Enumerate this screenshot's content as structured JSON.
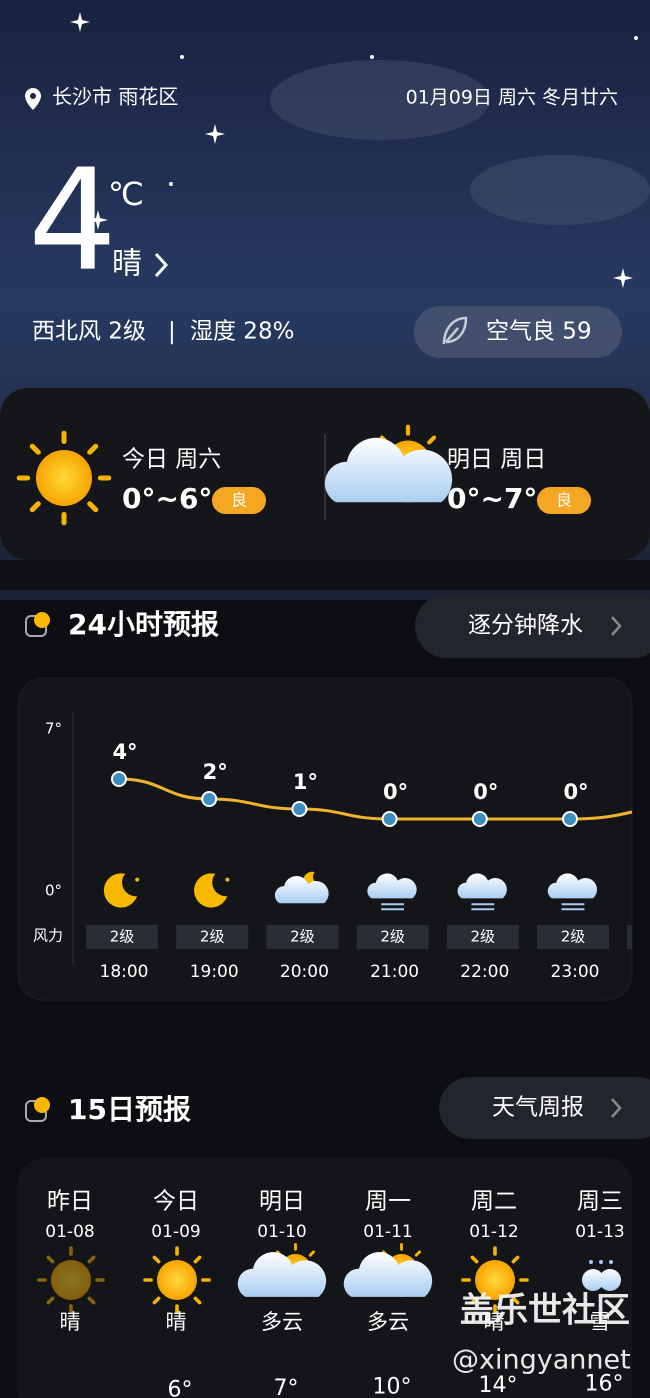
{
  "status": {
    "location": "长沙市 雨花区",
    "date": "01月09日 周六 冬月廿六"
  },
  "current": {
    "temp": "4",
    "unit": "℃",
    "condition": "晴",
    "wind": "西北风 2级",
    "separator": "|",
    "humidity": "湿度 28%",
    "air": "空气良 59"
  },
  "summary": [
    {
      "day": "今日 周六",
      "range": "0°~6°",
      "quality": "良",
      "icon": "sun"
    },
    {
      "day": "明日 周日",
      "range": "0°~7°",
      "quality": "良",
      "icon": "cloud-sun"
    }
  ],
  "hourly": {
    "title": "24小时预报",
    "button": "逐分钟降水",
    "axis_top": "7°",
    "axis_bottom": "0°",
    "wind_label": "风力",
    "items": [
      {
        "temp": 4,
        "temp_label": "4°",
        "icon": "moon",
        "wind": "2级",
        "time": "18:00"
      },
      {
        "temp": 2,
        "temp_label": "2°",
        "icon": "moon",
        "wind": "2级",
        "time": "19:00"
      },
      {
        "temp": 1,
        "temp_label": "1°",
        "icon": "cloud-moon",
        "wind": "2级",
        "time": "20:00"
      },
      {
        "temp": 0,
        "temp_label": "0°",
        "icon": "snow",
        "wind": "2级",
        "time": "21:00"
      },
      {
        "temp": 0,
        "temp_label": "0°",
        "icon": "snow",
        "wind": "2级",
        "time": "22:00"
      },
      {
        "temp": 0,
        "temp_label": "0°",
        "icon": "snow",
        "wind": "2级",
        "time": "23:00"
      }
    ]
  },
  "daily": {
    "title": "15日预报",
    "button": "天气周报",
    "items": [
      {
        "day": "昨日",
        "date": "01-08",
        "condition": "晴",
        "icon": "sun",
        "past": true
      },
      {
        "day": "今日",
        "date": "01-09",
        "condition": "晴",
        "icon": "sun",
        "temp": "6°"
      },
      {
        "day": "明日",
        "date": "01-10",
        "condition": "多云",
        "icon": "cloud-sun",
        "temp": "7°"
      },
      {
        "day": "周一",
        "date": "01-11",
        "condition": "多云",
        "icon": "cloud-sun",
        "temp": "10°"
      },
      {
        "day": "周二",
        "date": "01-12",
        "condition": "晴",
        "icon": "sun",
        "temp": "14°"
      },
      {
        "day": "周三",
        "date": "01-13",
        "condition": "雪",
        "icon": "snow2",
        "temp": "16°"
      }
    ]
  },
  "watermark": {
    "title": "盖乐世社区",
    "handle": "@xingyannet"
  }
}
